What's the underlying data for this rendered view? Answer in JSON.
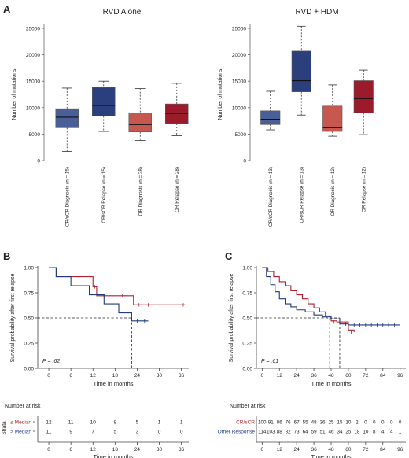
{
  "figure": {
    "panel_labels": [
      "A",
      "B",
      "C"
    ]
  },
  "colors": {
    "navy_light": "#4a5f97",
    "navy_dark": "#2a3f7b",
    "red_light": "#c7584f",
    "red_dark": "#9b1a2c",
    "km_red": "#b01f2e",
    "km_blue": "#1f3a7a"
  },
  "chart_data": [
    {
      "id": "A1",
      "type": "box",
      "title": "RVD Alone",
      "ylabel": "Number of mutations",
      "ylim": [
        0,
        25000
      ],
      "yticks": [
        "0",
        "5000",
        "10000",
        "15000",
        "20000",
        "25000"
      ],
      "categories": [
        "CR/sCR Diagnosis (n = 15)",
        "CR/sCR Relapse (n = 15)",
        "OR Diagnosis (n = 28)",
        "OR Relapse (n = 28)"
      ],
      "boxes": [
        {
          "min": 1700,
          "q1": 6200,
          "median": 8200,
          "q3": 9800,
          "max": 13700,
          "color": "#4a5f97"
        },
        {
          "min": 5500,
          "q1": 8400,
          "median": 10400,
          "q3": 13800,
          "max": 15000,
          "color": "#2a3f7b"
        },
        {
          "min": 3800,
          "q1": 5400,
          "median": 6800,
          "q3": 9000,
          "max": 13600,
          "color": "#c7584f"
        },
        {
          "min": 4700,
          "q1": 7000,
          "median": 8900,
          "q3": 10700,
          "max": 14600,
          "color": "#9b1a2c"
        }
      ]
    },
    {
      "id": "A2",
      "type": "box",
      "title": "RVD + HDM",
      "ylabel": "Number of mutations",
      "ylim": [
        0,
        25000
      ],
      "yticks": [
        "0",
        "5000",
        "10000",
        "15000",
        "20000",
        "25000"
      ],
      "categories": [
        "CR/sCR Diagnosis (n = 13)",
        "CR/sCR Relapse (n = 13)",
        "OR Diagnosis (n = 12)",
        "OR Relapse (n = 12)"
      ],
      "boxes": [
        {
          "min": 5800,
          "q1": 6800,
          "median": 7800,
          "q3": 9400,
          "max": 13100,
          "color": "#4a5f97"
        },
        {
          "min": 8600,
          "q1": 13000,
          "median": 15100,
          "q3": 20700,
          "max": 25400,
          "color": "#2a3f7b"
        },
        {
          "min": 4600,
          "q1": 5500,
          "median": 6200,
          "q3": 10300,
          "max": 14300,
          "color": "#c7584f"
        },
        {
          "min": 4900,
          "q1": 9000,
          "median": 11700,
          "q3": 15100,
          "max": 17100,
          "color": "#9b1a2c"
        }
      ]
    },
    {
      "id": "B",
      "type": "line",
      "subtype": "kaplan-meier",
      "ylabel": "Survival probability after first relapse",
      "xlabel": "Time in months",
      "xlim": [
        -3,
        38
      ],
      "ylim": [
        0,
        1
      ],
      "xticks": [
        0,
        6,
        12,
        18,
        24,
        30,
        36
      ],
      "yticks": [
        "0.00",
        "0.25",
        "0.50",
        "0.75",
        "1.00"
      ],
      "pvalue": "P = .62",
      "median_line": {
        "y": 0.5,
        "x": 22.5
      },
      "series": [
        {
          "color": "#b01f2e",
          "x": [
            0,
            2,
            6,
            12,
            13,
            18,
            23,
            37
          ],
          "y": [
            1.0,
            0.91,
            0.91,
            0.81,
            0.72,
            0.72,
            0.63,
            0.63
          ],
          "censor": [
            [
              12.5,
              0.81
            ],
            [
              15,
              0.72
            ],
            [
              20,
              0.72
            ],
            [
              24.5,
              0.63
            ],
            [
              27,
              0.63
            ],
            [
              36.5,
              0.63
            ]
          ]
        },
        {
          "color": "#1f3a7a",
          "x": [
            0,
            2,
            6,
            11,
            15,
            19,
            22.5,
            27
          ],
          "y": [
            1.0,
            0.91,
            0.82,
            0.73,
            0.64,
            0.55,
            0.47,
            0.47
          ],
          "censor": [
            [
              24,
              0.47
            ],
            [
              26,
              0.47
            ]
          ]
        }
      ],
      "risk_table": {
        "header": "Number at risk",
        "strata_label": "Strata",
        "rows": [
          {
            "label": "≤ Median",
            "color": "#b01f2e",
            "values": [
              "12",
              "11",
              "10",
              "8",
              "5",
              "1",
              "1"
            ]
          },
          {
            "label": "> Median",
            "color": "#1f3a7a",
            "values": [
              "11",
              "9",
              "7",
              "5",
              "3",
              "0",
              "0"
            ]
          }
        ],
        "xlabel": "Time in months"
      }
    },
    {
      "id": "C",
      "type": "line",
      "subtype": "kaplan-meier",
      "ylabel": "Survival probability after first relapse",
      "xlabel": "Time in months",
      "xlim": [
        -4,
        100
      ],
      "ylim": [
        0,
        1
      ],
      "xticks": [
        0,
        12,
        24,
        36,
        48,
        60,
        72,
        84,
        96
      ],
      "yticks": [
        "0.00",
        "0.25",
        "0.50",
        "0.75",
        "1.00"
      ],
      "pvalue": "P = .61",
      "median_lines": [
        {
          "x": 47
        },
        {
          "x": 54
        }
      ],
      "series": [
        {
          "color": "#b01f2e",
          "x": [
            0,
            4,
            8,
            12,
            16,
            20,
            24,
            28,
            32,
            36,
            40,
            44,
            48,
            52,
            56,
            60,
            64
          ],
          "y": [
            1.0,
            0.96,
            0.91,
            0.86,
            0.82,
            0.77,
            0.73,
            0.69,
            0.64,
            0.6,
            0.56,
            0.52,
            0.47,
            0.46,
            0.46,
            0.38,
            0.36
          ],
          "censor": [
            [
              50,
              0.46
            ],
            [
              54,
              0.46
            ],
            [
              58,
              0.44
            ],
            [
              62,
              0.36
            ]
          ]
        },
        {
          "color": "#1f3a7a",
          "x": [
            0,
            3,
            6,
            9,
            12,
            16,
            20,
            24,
            30,
            36,
            42,
            48,
            54,
            60,
            96
          ],
          "y": [
            1.0,
            0.91,
            0.83,
            0.76,
            0.69,
            0.64,
            0.61,
            0.58,
            0.56,
            0.53,
            0.51,
            0.49,
            0.44,
            0.43,
            0.43
          ],
          "censor": [
            [
              58,
              0.44
            ],
            [
              64,
              0.43
            ],
            [
              68,
              0.43
            ],
            [
              72,
              0.43
            ],
            [
              76,
              0.43
            ],
            [
              80,
              0.43
            ],
            [
              84,
              0.43
            ],
            [
              88,
              0.43
            ],
            [
              92,
              0.43
            ]
          ]
        }
      ],
      "risk_table": {
        "header": "Number at risk",
        "rows": [
          {
            "label": "CR/sCR",
            "color": "#b01f2e",
            "values": [
              "100",
              "91",
              "86",
              "76",
              "67",
              "55",
              "48",
              "36",
              "25",
              "15",
              "10",
              "2",
              "0",
              "0",
              "0",
              "0",
              "0"
            ]
          },
          {
            "label": "Other Response",
            "color": "#1f3a7a",
            "values": [
              "114",
              "103",
              "88",
              "82",
              "73",
              "64",
              "59",
              "51",
              "46",
              "34",
              "25",
              "18",
              "10",
              "8",
              "4",
              "4",
              "1"
            ]
          }
        ],
        "xticks": [
          0,
          12,
          24,
          36,
          48,
          60,
          72,
          84,
          96
        ],
        "xlabel": "Time in months"
      }
    }
  ]
}
